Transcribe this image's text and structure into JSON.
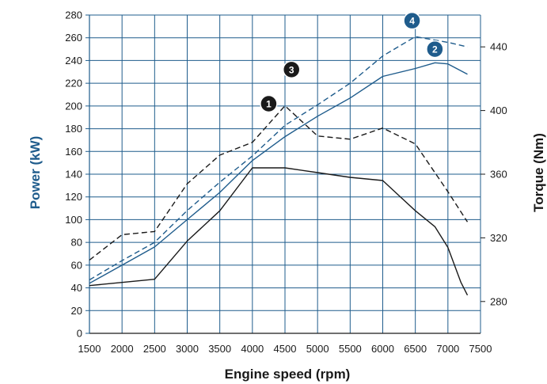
{
  "chart_data": {
    "type": "line",
    "xlabel": "Engine speed (rpm)",
    "ylabel": "Power (kW)",
    "y2label": "Torque (Nm)",
    "xlim": [
      1500,
      7500
    ],
    "ylim": [
      0,
      280
    ],
    "y2lim": [
      260,
      460
    ],
    "x_ticks": [
      1500,
      2000,
      2500,
      3000,
      3500,
      4000,
      4500,
      5000,
      5500,
      6000,
      6500,
      7000,
      7500
    ],
    "y_ticks": [
      0,
      20,
      40,
      60,
      80,
      100,
      120,
      140,
      160,
      180,
      200,
      220,
      240,
      260,
      280
    ],
    "y2_ticks": [
      280,
      320,
      360,
      400,
      440
    ],
    "grid": true,
    "colors": {
      "grid": "#1f5c8c",
      "dark": "#1a1a1a",
      "blue": "#1f5c8c",
      "marker_dark": "#1a1a1a",
      "marker_blue": "#1f5c8c"
    },
    "series": [
      {
        "id": "1",
        "axis": "y2",
        "style": "solid",
        "color": "dark",
        "x": [
          1500,
          2000,
          2500,
          3000,
          3500,
          4000,
          4500,
          5000,
          5500,
          6000,
          6500,
          6800,
          7000,
          7200,
          7300
        ],
        "values": [
          290,
          292,
          294,
          318,
          337,
          364,
          364,
          361,
          358,
          356,
          337,
          327,
          314,
          292,
          284
        ]
      },
      {
        "id": "2",
        "axis": "y1",
        "style": "solid",
        "color": "blue",
        "x": [
          1500,
          2000,
          2500,
          3000,
          3500,
          4000,
          4500,
          5000,
          5500,
          6000,
          6500,
          6800,
          7000,
          7300
        ],
        "values": [
          44,
          60,
          76,
          100,
          124,
          152,
          173,
          191,
          207,
          226,
          233,
          238,
          237,
          228
        ]
      },
      {
        "id": "3",
        "axis": "y2",
        "style": "dashed",
        "color": "dark",
        "x": [
          1500,
          2000,
          2500,
          3000,
          3500,
          4000,
          4500,
          5000,
          5500,
          6000,
          6500,
          7000,
          7300
        ],
        "values": [
          306,
          322,
          324,
          354,
          372,
          380,
          403,
          384,
          382,
          389,
          379,
          349,
          330
        ]
      },
      {
        "id": "4",
        "axis": "y1",
        "style": "dashed",
        "color": "blue",
        "x": [
          1500,
          2000,
          2500,
          3000,
          3500,
          4000,
          4500,
          5000,
          5500,
          6000,
          6500,
          7000,
          7300
        ],
        "values": [
          47,
          64,
          80,
          108,
          133,
          156,
          183,
          201,
          220,
          244,
          261,
          256,
          252
        ]
      }
    ],
    "markers": [
      {
        "label": "1",
        "x": 4250,
        "y": 202,
        "axis": "y1",
        "color": "marker_dark"
      },
      {
        "label": "2",
        "x": 6800,
        "y": 250,
        "axis": "y1",
        "color": "marker_blue"
      },
      {
        "label": "3",
        "x": 4600,
        "y": 232,
        "axis": "y1",
        "color": "marker_dark"
      },
      {
        "label": "4",
        "x": 6450,
        "y": 275,
        "axis": "y1",
        "color": "marker_blue"
      }
    ]
  }
}
